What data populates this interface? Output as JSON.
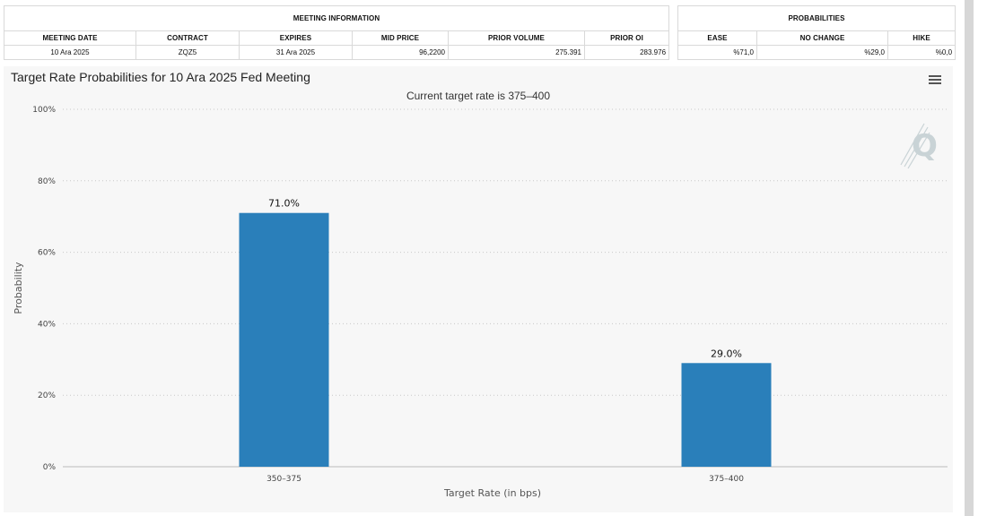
{
  "meeting_info": {
    "group_title": "MEETING INFORMATION",
    "headers": [
      "MEETING DATE",
      "CONTRACT",
      "EXPIRES",
      "MID PRICE",
      "PRIOR VOLUME",
      "PRIOR OI"
    ],
    "row": {
      "meeting_date": "10 Ara 2025",
      "contract": "ZQZ5",
      "expires": "31 Ara 2025",
      "mid_price": "96,2200",
      "prior_volume": "275.391",
      "prior_oi": "283.976"
    }
  },
  "probabilities": {
    "group_title": "PROBABILITIES",
    "headers": [
      "EASE",
      "NO CHANGE",
      "HIKE"
    ],
    "row": {
      "ease": "%71,0",
      "no_change": "%29,0",
      "hike": "%0,0"
    }
  },
  "chart_data": {
    "type": "bar",
    "title": "Target Rate Probabilities for 10 Ara 2025 Fed Meeting",
    "subtitle": "Current target rate is 375–400",
    "categories": [
      "350–375",
      "375–400"
    ],
    "values": [
      71.0,
      29.0
    ],
    "data_labels": [
      "71.0%",
      "29.0%"
    ],
    "xlabel": "Target Rate (in bps)",
    "ylabel": "Probability",
    "ylim": [
      0,
      100
    ],
    "yticks": [
      0,
      20,
      40,
      60,
      80,
      100
    ],
    "ytick_labels": [
      "0%",
      "20%",
      "40%",
      "60%",
      "80%",
      "100%"
    ],
    "grid": true,
    "bar_color": "#2a7fba"
  },
  "colors": {
    "bar": "#2a7fba",
    "panel_background": "#f7f7f7",
    "watermark": "#c9d3d6"
  },
  "icons": {
    "menu": "hamburger-menu-icon",
    "watermark": "q-logo-icon"
  }
}
